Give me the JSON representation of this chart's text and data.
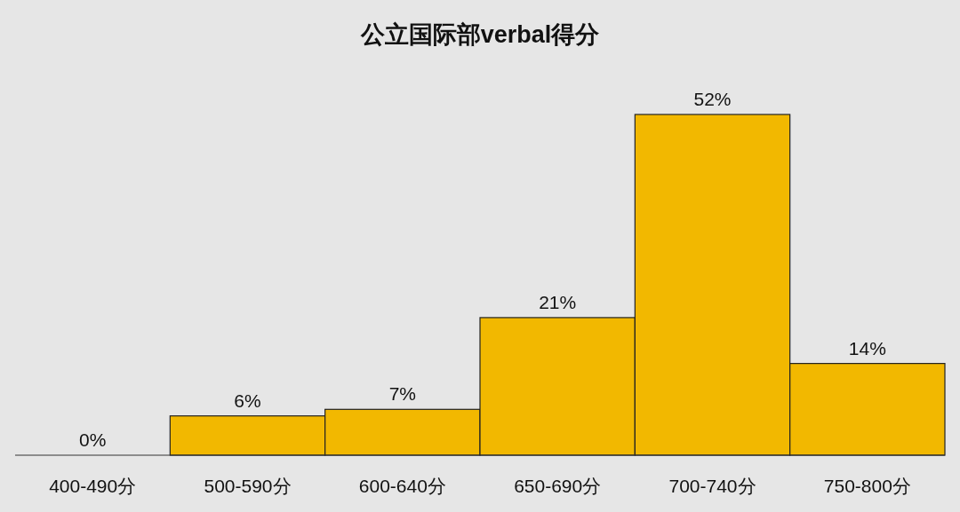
{
  "chart_data": {
    "type": "bar",
    "title": "公立国际部verbal得分",
    "categories": [
      "400-490分",
      "500-590分",
      "600-640分",
      "650-690分",
      "700-740分",
      "750-800分"
    ],
    "values": [
      0,
      6,
      7,
      21,
      52,
      14
    ],
    "color": "#f2b800",
    "value_labels": [
      "0%",
      "6%",
      "7%",
      "21%",
      "52%",
      "14%"
    ]
  }
}
